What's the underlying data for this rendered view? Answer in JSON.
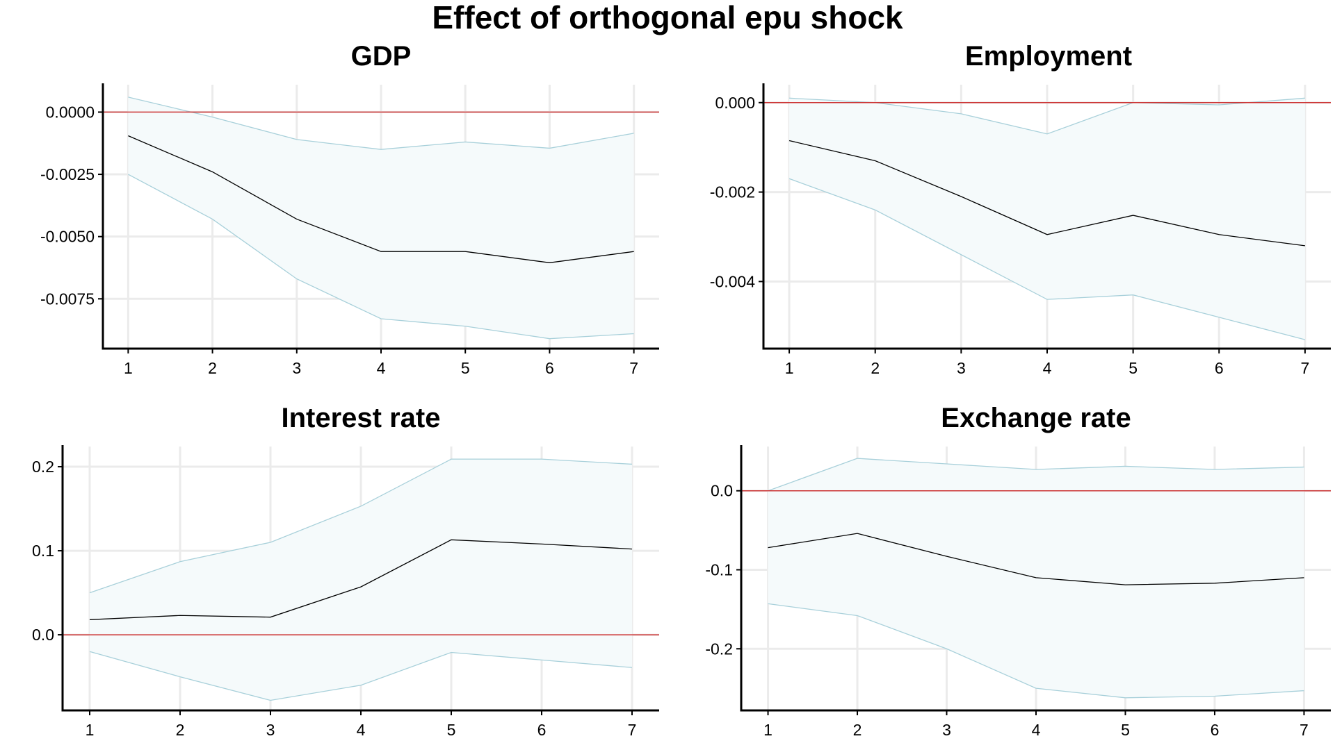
{
  "figure": {
    "title": "Effect of orthogonal epu shock"
  },
  "colors": {
    "response_line": "#000000",
    "band_fill": "#f5fafb",
    "band_edge": "#a8d0da",
    "zero_line": "#cc3333",
    "grid": "#ebebeb",
    "axis": "#000000"
  },
  "chart_data": [
    {
      "type": "line",
      "title": "GDP",
      "xlabel": "",
      "ylabel": "",
      "grid": true,
      "x": [
        1,
        2,
        3,
        4,
        5,
        6,
        7
      ],
      "xlim": [
        0.7,
        7.3
      ],
      "ylim": [
        -0.0095,
        0.0011
      ],
      "y_ticks": [
        0,
        -0.0025,
        -0.005,
        -0.0075
      ],
      "y_tick_labels": [
        "0.0000",
        "-0.0025",
        "-0.0050",
        "-0.0075"
      ],
      "x_tick_labels": [
        "1",
        "2",
        "3",
        "4",
        "5",
        "6",
        "7"
      ],
      "series": [
        {
          "values": [
            -0.00095,
            -0.0024,
            -0.0043,
            -0.0056,
            -0.0056,
            -0.00605,
            -0.0056
          ]
        },
        {
          "values": [
            0.0006,
            -0.0002,
            -0.0011,
            -0.0015,
            -0.0012,
            -0.00145,
            -0.00085
          ]
        },
        {
          "values": [
            -0.0025,
            -0.0043,
            -0.0067,
            -0.0083,
            -0.0086,
            -0.0091,
            -0.0089
          ]
        }
      ],
      "reference_line": 0
    },
    {
      "type": "line",
      "title": "Employment",
      "xlabel": "",
      "ylabel": "",
      "grid": true,
      "x": [
        1,
        2,
        3,
        4,
        5,
        6,
        7
      ],
      "xlim": [
        0.7,
        7.3
      ],
      "ylim": [
        -0.0055,
        0.0004
      ],
      "y_ticks": [
        0,
        -0.002,
        -0.004
      ],
      "y_tick_labels": [
        "0.000",
        "-0.002",
        "-0.004"
      ],
      "x_tick_labels": [
        "1",
        "2",
        "3",
        "4",
        "5",
        "6",
        "7"
      ],
      "series": [
        {
          "values": [
            -0.00085,
            -0.0013,
            -0.0021,
            -0.00295,
            -0.00252,
            -0.00295,
            -0.0032
          ]
        },
        {
          "values": [
            0.0001,
            0.0,
            -0.00025,
            -0.0007,
            0.0,
            -5e-05,
            0.0001
          ]
        },
        {
          "values": [
            -0.0017,
            -0.0024,
            -0.0034,
            -0.0044,
            -0.0043,
            -0.0048,
            -0.0053
          ]
        }
      ],
      "reference_line": 0
    },
    {
      "type": "line",
      "title": "Interest rate",
      "xlabel": "",
      "ylabel": "",
      "grid": true,
      "x": [
        1,
        2,
        3,
        4,
        5,
        6,
        7
      ],
      "xlim": [
        0.7,
        7.3
      ],
      "ylim": [
        -0.09,
        0.224
      ],
      "y_ticks": [
        0.2,
        0.1,
        0
      ],
      "y_tick_labels": [
        "0.2",
        "0.1",
        "0.0"
      ],
      "x_tick_labels": [
        "1",
        "2",
        "3",
        "4",
        "5",
        "6",
        "7"
      ],
      "series": [
        {
          "values": [
            0.018,
            0.023,
            0.021,
            0.057,
            0.113,
            0.108,
            0.102
          ]
        },
        {
          "values": [
            0.05,
            0.087,
            0.11,
            0.153,
            0.209,
            0.209,
            0.203
          ]
        },
        {
          "values": [
            -0.02,
            -0.05,
            -0.078,
            -0.06,
            -0.021,
            -0.03,
            -0.039
          ]
        }
      ],
      "reference_line": 0
    },
    {
      "type": "line",
      "title": "Exchange rate",
      "xlabel": "",
      "ylabel": "",
      "grid": true,
      "x": [
        1,
        2,
        3,
        4,
        5,
        6,
        7
      ],
      "xlim": [
        0.7,
        7.3
      ],
      "ylim": [
        -0.278,
        0.056
      ],
      "y_ticks": [
        0,
        -0.1,
        -0.2
      ],
      "y_tick_labels": [
        "0.0",
        "-0.1",
        "-0.2"
      ],
      "x_tick_labels": [
        "1",
        "2",
        "3",
        "4",
        "5",
        "6",
        "7"
      ],
      "series": [
        {
          "values": [
            -0.072,
            -0.054,
            -0.083,
            -0.11,
            -0.119,
            -0.117,
            -0.11
          ]
        },
        {
          "values": [
            0.0,
            0.041,
            0.034,
            0.027,
            0.031,
            0.027,
            0.03
          ]
        },
        {
          "values": [
            -0.143,
            -0.158,
            -0.2,
            -0.25,
            -0.262,
            -0.26,
            -0.253
          ]
        }
      ],
      "reference_line": 0
    }
  ]
}
